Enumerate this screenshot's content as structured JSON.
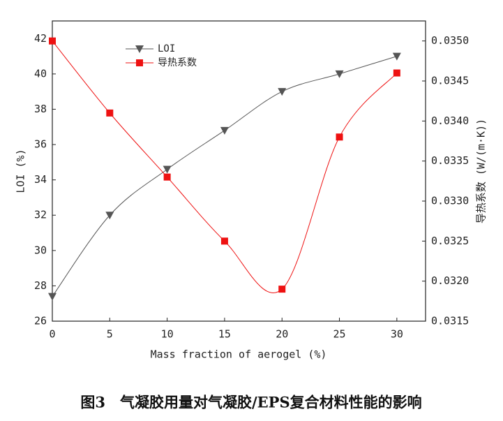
{
  "chart_data": {
    "type": "line",
    "caption": "图3　气凝胶用量对气凝胶/EPS复合材料性能的影响",
    "xlabel": "Mass fraction of aerogel (%)",
    "ylabel": "LOI (%)",
    "y2label": "导热系数 (W/(m·K))",
    "x": [
      0,
      5,
      10,
      15,
      20,
      25,
      30
    ],
    "xlim": [
      0,
      32.5
    ],
    "xticks": [
      0,
      5,
      10,
      15,
      20,
      25,
      30
    ],
    "ylim": [
      26,
      43
    ],
    "yticks": [
      26,
      28,
      30,
      32,
      34,
      36,
      38,
      40,
      42
    ],
    "y2lim": [
      0.0315,
      0.03525
    ],
    "y2ticks": [
      0.0315,
      {
        "value": 0.032,
        "label": "0.0320"
      },
      0.0325,
      {
        "value": 0.033,
        "label": "0.0330"
      },
      0.0335,
      {
        "value": 0.034,
        "label": "0.0340"
      },
      0.0345,
      {
        "value": 0.035,
        "label": "0.0350"
      }
    ],
    "series": [
      {
        "name": "LOI",
        "color": "#555555",
        "marker": "triangle-down",
        "values": [
          27.4,
          32,
          34.6,
          36.8,
          39,
          40,
          41
        ]
      },
      {
        "name": "导热系数",
        "color": "#ee1111",
        "marker": "square",
        "axis": "y2",
        "values": [
          0.035,
          0.0341,
          0.0333,
          0.0325,
          0.0319,
          0.0338,
          0.0346
        ]
      }
    ]
  }
}
